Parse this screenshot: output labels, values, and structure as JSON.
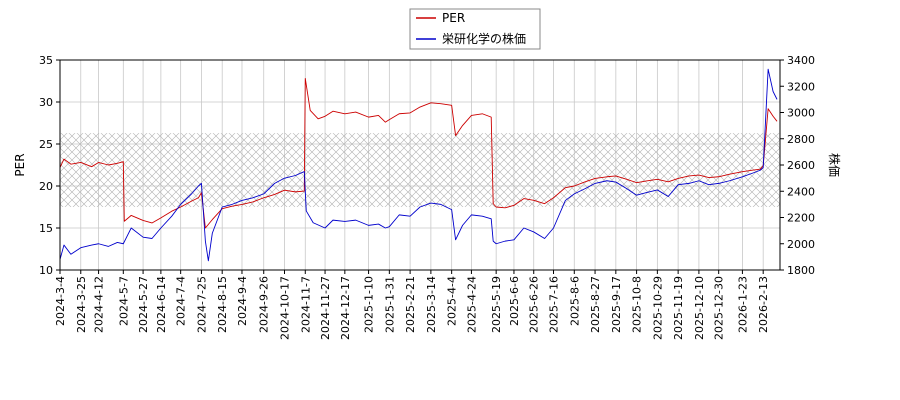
{
  "chart_data": {
    "type": "line",
    "title": "",
    "legend": {
      "placement": "top-center",
      "entries": [
        "PER",
        "栄研化学の株価"
      ]
    },
    "grid": true,
    "band": {
      "description": "hatched reference band",
      "ylim_left": [
        17.5,
        26.3
      ]
    },
    "y_left": {
      "label": "PER",
      "ylim": [
        10,
        35
      ],
      "ticks": [
        "10",
        "15",
        "20",
        "25",
        "30",
        "35"
      ]
    },
    "y_right": {
      "label": "株価",
      "ylim": [
        1800,
        3400
      ],
      "ticks": [
        "1800",
        "2000",
        "2200",
        "2400",
        "2600",
        "2800",
        "3000",
        "3200",
        "3400"
      ]
    },
    "x": {
      "range": [
        "2024-03-04",
        "2026-03-02"
      ],
      "ticks": [
        "2024-3-4",
        "2024-3-25",
        "2024-4-12",
        "2024-5-7",
        "2024-5-27",
        "2024-6-14",
        "2024-7-4",
        "2024-7-25",
        "2024-8-15",
        "2024-9-4",
        "2024-9-26",
        "2024-10-17",
        "2024-11-7",
        "2024-11-27",
        "2024-12-17",
        "2025-1-10",
        "2025-1-31",
        "2025-2-21",
        "2025-3-14",
        "2025-4-4",
        "2025-4-24",
        "2025-5-19",
        "2025-6-6",
        "2025-6-26",
        "2025-7-16",
        "2025-8-6",
        "2025-8-27",
        "2025-9-17",
        "2025-10-8",
        "2025-10-29",
        "2025-11-19",
        "2025-12-10",
        "2025-12-30",
        "2026-1-23",
        "2026-2-13"
      ]
    },
    "series": [
      {
        "name": "PER",
        "color": "#cc0000",
        "axis": "left",
        "points": [
          [
            "2024-03-04",
            22.2
          ],
          [
            "2024-03-08",
            23.2
          ],
          [
            "2024-03-15",
            22.6
          ],
          [
            "2024-03-25",
            22.8
          ],
          [
            "2024-04-05",
            22.3
          ],
          [
            "2024-04-12",
            22.8
          ],
          [
            "2024-04-22",
            22.5
          ],
          [
            "2024-05-01",
            22.7
          ],
          [
            "2024-05-07",
            22.9
          ],
          [
            "2024-05-08",
            15.8
          ],
          [
            "2024-05-15",
            16.5
          ],
          [
            "2024-05-27",
            15.9
          ],
          [
            "2024-06-05",
            15.6
          ],
          [
            "2024-06-14",
            16.2
          ],
          [
            "2024-06-25",
            17.0
          ],
          [
            "2024-07-04",
            17.5
          ],
          [
            "2024-07-15",
            18.2
          ],
          [
            "2024-07-22",
            18.6
          ],
          [
            "2024-07-25",
            19.2
          ],
          [
            "2024-07-29",
            15.0
          ],
          [
            "2024-08-05",
            16.0
          ],
          [
            "2024-08-15",
            17.3
          ],
          [
            "2024-08-25",
            17.6
          ],
          [
            "2024-09-04",
            17.8
          ],
          [
            "2024-09-15",
            18.1
          ],
          [
            "2024-09-26",
            18.6
          ],
          [
            "2024-10-07",
            19.0
          ],
          [
            "2024-10-17",
            19.5
          ],
          [
            "2024-10-28",
            19.3
          ],
          [
            "2024-11-06",
            19.4
          ],
          [
            "2024-11-07",
            32.8
          ],
          [
            "2024-11-12",
            29.0
          ],
          [
            "2024-11-20",
            28.0
          ],
          [
            "2024-11-27",
            28.3
          ],
          [
            "2024-12-05",
            28.9
          ],
          [
            "2024-12-17",
            28.6
          ],
          [
            "2024-12-28",
            28.8
          ],
          [
            "2025-01-10",
            28.2
          ],
          [
            "2025-01-20",
            28.4
          ],
          [
            "2025-01-27",
            27.6
          ],
          [
            "2025-01-31",
            27.9
          ],
          [
            "2025-02-10",
            28.6
          ],
          [
            "2025-02-21",
            28.7
          ],
          [
            "2025-03-03",
            29.4
          ],
          [
            "2025-03-14",
            29.9
          ],
          [
            "2025-03-24",
            29.8
          ],
          [
            "2025-04-04",
            29.6
          ],
          [
            "2025-04-08",
            26.0
          ],
          [
            "2025-04-15",
            27.2
          ],
          [
            "2025-04-24",
            28.4
          ],
          [
            "2025-05-05",
            28.6
          ],
          [
            "2025-05-14",
            28.2
          ],
          [
            "2025-05-16",
            17.9
          ],
          [
            "2025-05-19",
            17.5
          ],
          [
            "2025-05-28",
            17.4
          ],
          [
            "2025-06-06",
            17.7
          ],
          [
            "2025-06-16",
            18.5
          ],
          [
            "2025-06-26",
            18.3
          ],
          [
            "2025-07-07",
            17.9
          ],
          [
            "2025-07-16",
            18.6
          ],
          [
            "2025-07-28",
            19.8
          ],
          [
            "2025-08-06",
            20.0
          ],
          [
            "2025-08-17",
            20.5
          ],
          [
            "2025-08-27",
            20.9
          ],
          [
            "2025-09-08",
            21.1
          ],
          [
            "2025-09-17",
            21.2
          ],
          [
            "2025-09-28",
            20.8
          ],
          [
            "2025-10-08",
            20.4
          ],
          [
            "2025-10-18",
            20.6
          ],
          [
            "2025-10-29",
            20.8
          ],
          [
            "2025-11-09",
            20.5
          ],
          [
            "2025-11-19",
            20.9
          ],
          [
            "2025-11-30",
            21.2
          ],
          [
            "2025-12-10",
            21.3
          ],
          [
            "2025-12-20",
            21.0
          ],
          [
            "2025-12-30",
            21.1
          ],
          [
            "2026-01-10",
            21.4
          ],
          [
            "2026-01-23",
            21.7
          ],
          [
            "2026-02-03",
            21.9
          ],
          [
            "2026-02-10",
            22.0
          ],
          [
            "2026-02-13",
            22.4
          ],
          [
            "2026-02-18",
            29.2
          ],
          [
            "2026-02-23",
            28.3
          ],
          [
            "2026-02-27",
            27.7
          ]
        ]
      },
      {
        "name": "栄研化学の株価",
        "color": "#0000cc",
        "axis": "right",
        "points": [
          [
            "2024-03-04",
            1880
          ],
          [
            "2024-03-08",
            1990
          ],
          [
            "2024-03-15",
            1920
          ],
          [
            "2024-03-25",
            1970
          ],
          [
            "2024-04-05",
            1990
          ],
          [
            "2024-04-12",
            2000
          ],
          [
            "2024-04-22",
            1980
          ],
          [
            "2024-05-01",
            2010
          ],
          [
            "2024-05-07",
            2000
          ],
          [
            "2024-05-15",
            2120
          ],
          [
            "2024-05-27",
            2050
          ],
          [
            "2024-06-05",
            2040
          ],
          [
            "2024-06-14",
            2120
          ],
          [
            "2024-06-25",
            2210
          ],
          [
            "2024-07-04",
            2300
          ],
          [
            "2024-07-15",
            2380
          ],
          [
            "2024-07-22",
            2440
          ],
          [
            "2024-07-25",
            2460
          ],
          [
            "2024-07-29",
            2020
          ],
          [
            "2024-08-01",
            1870
          ],
          [
            "2024-08-05",
            2080
          ],
          [
            "2024-08-15",
            2280
          ],
          [
            "2024-08-25",
            2300
          ],
          [
            "2024-09-04",
            2330
          ],
          [
            "2024-09-15",
            2350
          ],
          [
            "2024-09-26",
            2380
          ],
          [
            "2024-10-07",
            2460
          ],
          [
            "2024-10-17",
            2500
          ],
          [
            "2024-10-28",
            2520
          ],
          [
            "2024-11-06",
            2550
          ],
          [
            "2024-11-08",
            2250
          ],
          [
            "2024-11-15",
            2160
          ],
          [
            "2024-11-27",
            2120
          ],
          [
            "2024-12-05",
            2180
          ],
          [
            "2024-12-17",
            2170
          ],
          [
            "2024-12-28",
            2180
          ],
          [
            "2025-01-10",
            2140
          ],
          [
            "2025-01-20",
            2150
          ],
          [
            "2025-01-27",
            2120
          ],
          [
            "2025-01-31",
            2130
          ],
          [
            "2025-02-10",
            2220
          ],
          [
            "2025-02-21",
            2210
          ],
          [
            "2025-03-03",
            2280
          ],
          [
            "2025-03-14",
            2310
          ],
          [
            "2025-03-24",
            2300
          ],
          [
            "2025-04-04",
            2260
          ],
          [
            "2025-04-08",
            2030
          ],
          [
            "2025-04-15",
            2140
          ],
          [
            "2025-04-24",
            2220
          ],
          [
            "2025-05-05",
            2210
          ],
          [
            "2025-05-14",
            2190
          ],
          [
            "2025-05-16",
            2020
          ],
          [
            "2025-05-19",
            2000
          ],
          [
            "2025-05-28",
            2020
          ],
          [
            "2025-06-06",
            2030
          ],
          [
            "2025-06-16",
            2120
          ],
          [
            "2025-06-26",
            2090
          ],
          [
            "2025-07-07",
            2040
          ],
          [
            "2025-07-16",
            2120
          ],
          [
            "2025-07-28",
            2330
          ],
          [
            "2025-08-06",
            2380
          ],
          [
            "2025-08-17",
            2420
          ],
          [
            "2025-08-27",
            2460
          ],
          [
            "2025-09-08",
            2480
          ],
          [
            "2025-09-17",
            2470
          ],
          [
            "2025-09-28",
            2420
          ],
          [
            "2025-10-08",
            2370
          ],
          [
            "2025-10-18",
            2390
          ],
          [
            "2025-10-29",
            2410
          ],
          [
            "2025-11-09",
            2360
          ],
          [
            "2025-11-19",
            2450
          ],
          [
            "2025-11-30",
            2460
          ],
          [
            "2025-12-10",
            2480
          ],
          [
            "2025-12-20",
            2450
          ],
          [
            "2025-12-30",
            2460
          ],
          [
            "2026-01-10",
            2480
          ],
          [
            "2026-01-23",
            2510
          ],
          [
            "2026-02-03",
            2540
          ],
          [
            "2026-02-10",
            2560
          ],
          [
            "2026-02-13",
            2580
          ],
          [
            "2026-02-18",
            3330
          ],
          [
            "2026-02-23",
            3160
          ],
          [
            "2026-02-27",
            3100
          ]
        ]
      }
    ]
  }
}
